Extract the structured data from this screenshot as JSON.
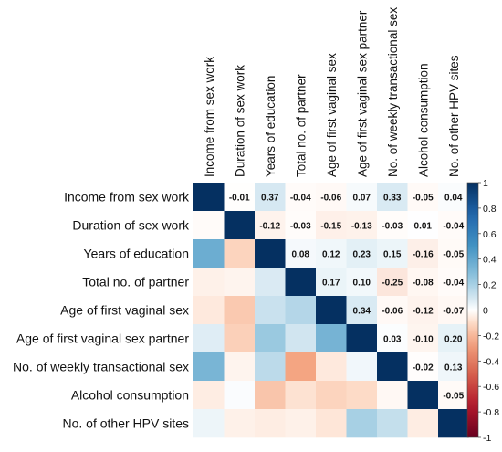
{
  "chart_data": {
    "type": "heatmap",
    "variables": [
      "Income from sex work",
      "Duration of sex work",
      "Years of education",
      "Total no. of partner",
      "Age of first vaginal sex",
      "Age of first vaginal sex partner",
      "No. of weekly transactional sex",
      "Alcohol consumption",
      "No. of other HPV sites"
    ],
    "matrix": [
      [
        1.0,
        -0.01,
        0.37,
        -0.04,
        -0.06,
        0.07,
        0.33,
        -0.05,
        0.04
      ],
      [
        -0.01,
        1.0,
        -0.12,
        -0.03,
        -0.15,
        -0.13,
        -0.03,
        0.01,
        -0.04
      ],
      [
        0.37,
        -0.12,
        1.0,
        0.08,
        0.12,
        0.23,
        0.15,
        -0.16,
        -0.05
      ],
      [
        -0.04,
        -0.03,
        0.08,
        1.0,
        0.17,
        0.1,
        -0.25,
        -0.08,
        -0.04
      ],
      [
        -0.06,
        -0.15,
        0.12,
        0.17,
        1.0,
        0.34,
        -0.06,
        -0.12,
        -0.07
      ],
      [
        0.07,
        -0.13,
        0.23,
        0.1,
        0.34,
        1.0,
        0.03,
        -0.1,
        0.2
      ],
      [
        0.33,
        -0.03,
        0.15,
        -0.25,
        -0.06,
        0.03,
        1.0,
        -0.02,
        0.13
      ],
      [
        -0.05,
        0.01,
        -0.16,
        -0.08,
        -0.12,
        -0.1,
        -0.02,
        1.0,
        -0.05
      ],
      [
        0.04,
        -0.04,
        -0.05,
        -0.04,
        -0.07,
        0.2,
        0.13,
        -0.05,
        1.0
      ]
    ],
    "upper_labels": [
      [
        "-0.01",
        "0.37",
        "-0.04",
        "-0.06",
        "0.07",
        "0.33",
        "-0.05",
        "0.04"
      ],
      [
        "-0.12",
        "-0.03",
        "-0.15",
        "-0.13",
        "-0.03",
        "0.01",
        "-0.04"
      ],
      [
        "0.08",
        "0.12",
        "0.23",
        "0.15",
        "-0.16",
        "-0.05"
      ],
      [
        "0.17",
        "0.10",
        "-0.25",
        "-0.08",
        "-0.04"
      ],
      [
        "0.34",
        "-0.06",
        "-0.12",
        "-0.07"
      ],
      [
        "0.03",
        "-0.10",
        "0.20"
      ],
      [
        "-0.02",
        "0.13"
      ],
      [
        "-0.05"
      ],
      []
    ],
    "colorbar": {
      "ticks": [
        "1",
        "0.8",
        "0.6",
        "0.4",
        "0.2",
        "0",
        "-0.2",
        "-0.4",
        "-0.6",
        "-0.8",
        "-1"
      ],
      "range": [
        -1,
        1
      ],
      "high_color": "#053061",
      "mid_color": "#ffffff",
      "low_color": "#67001f"
    },
    "show_values": "upper-triangle"
  }
}
